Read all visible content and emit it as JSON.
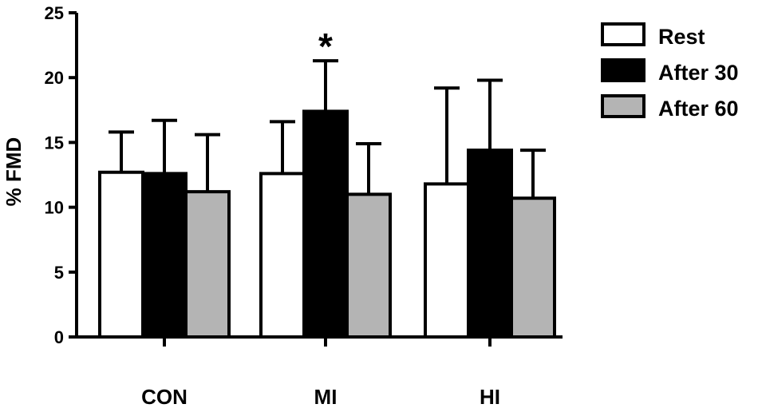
{
  "chart_data": {
    "type": "bar",
    "title": "",
    "xlabel": "",
    "ylabel": "% FMD",
    "ylim": [
      0,
      25
    ],
    "yticks": [
      0,
      5,
      10,
      15,
      20,
      25
    ],
    "grid": false,
    "legend_position": "top-right",
    "categories": [
      "CON",
      "MI",
      "HI"
    ],
    "series": [
      {
        "name": "Rest",
        "color": "#ffffff",
        "values": [
          12.7,
          12.6,
          11.8
        ],
        "errors": [
          3.1,
          4.0,
          7.4
        ]
      },
      {
        "name": "After 30",
        "color": "#000000",
        "values": [
          12.6,
          17.4,
          14.4
        ],
        "errors": [
          4.1,
          3.9,
          5.4
        ]
      },
      {
        "name": "After 60",
        "color": "#b4b4b4",
        "values": [
          11.2,
          11.0,
          10.7
        ],
        "errors": [
          4.4,
          3.9,
          3.7
        ]
      }
    ],
    "annotations": [
      {
        "category": "MI",
        "series": "After 30",
        "text": "*"
      }
    ]
  }
}
